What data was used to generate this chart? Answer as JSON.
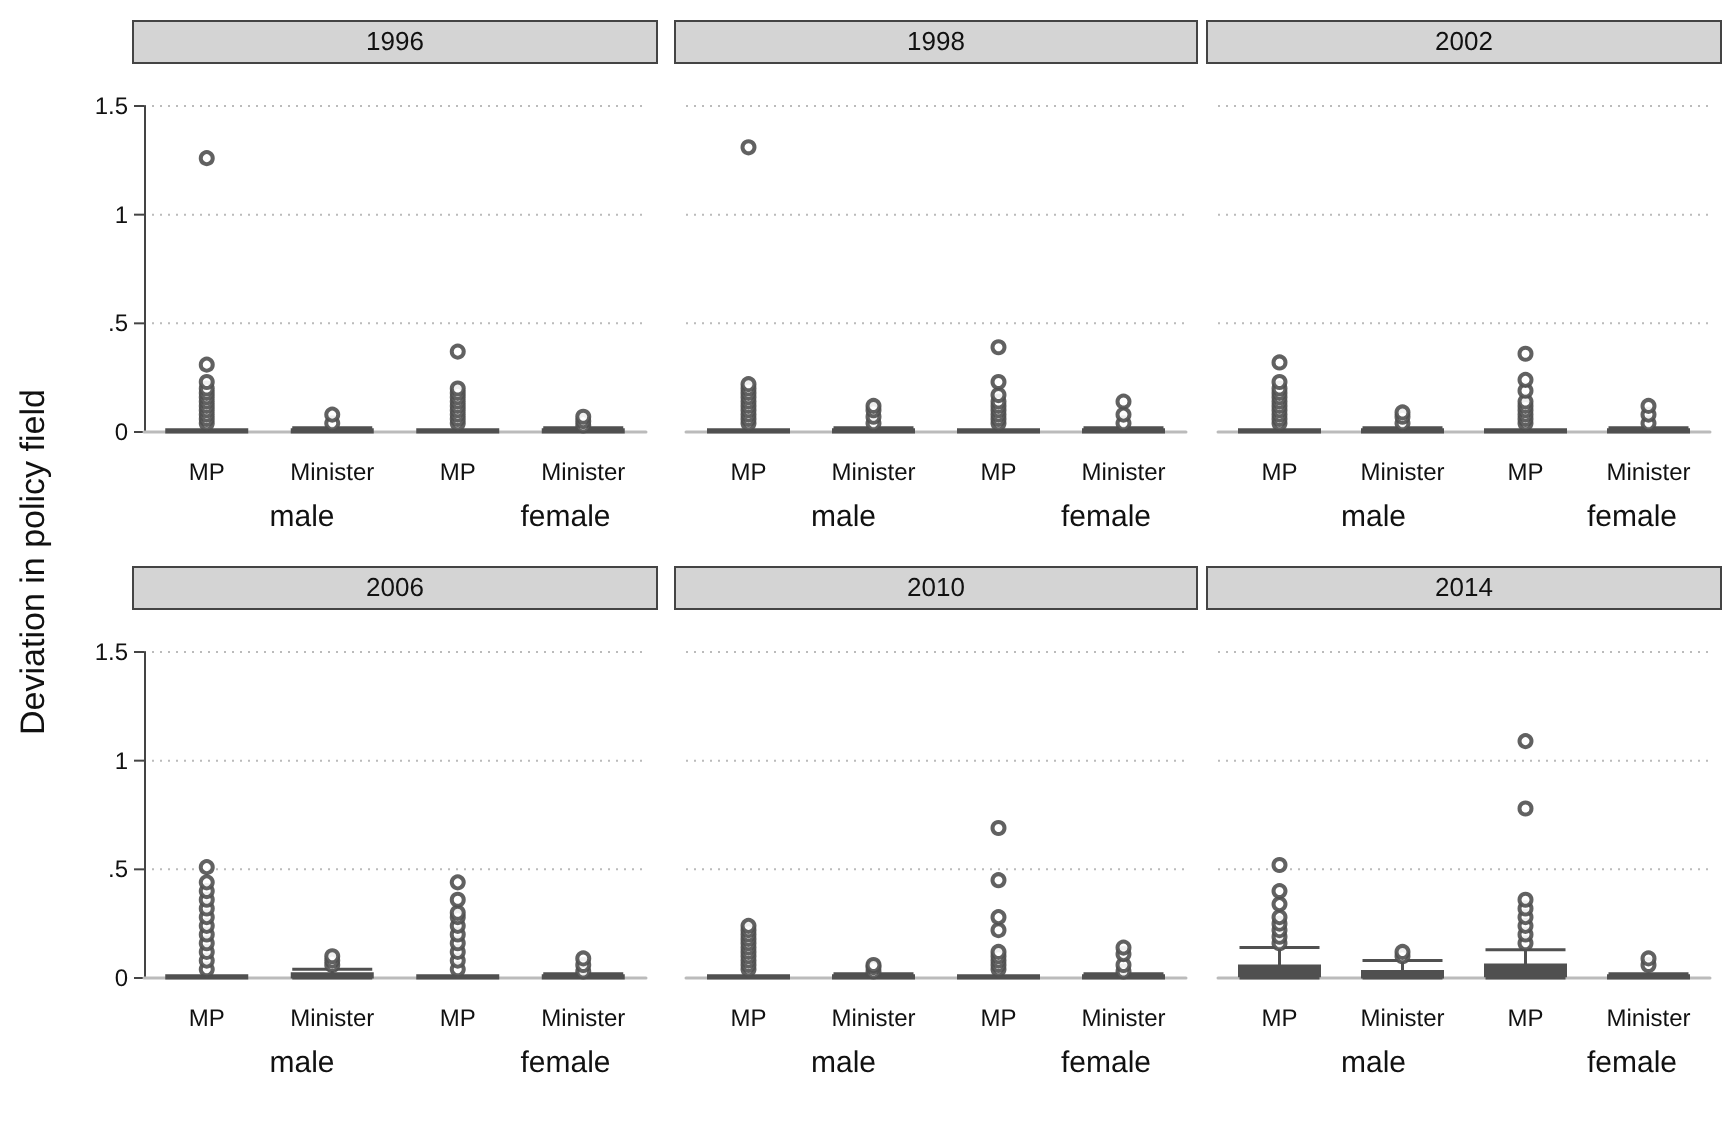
{
  "chart_data": [
    {
      "type": "box",
      "title": "1996",
      "ylabel": "Deviation in policy field",
      "categories": [
        "MP",
        "Minister",
        "MP",
        "Minister"
      ],
      "annotations": [
        "male",
        "female"
      ],
      "ylim": [
        0,
        1.5
      ],
      "yticks": [
        {
          "value": 0,
          "label": "0"
        },
        {
          "value": 0.5,
          "label": ".5"
        },
        {
          "value": 1,
          "label": "1"
        },
        {
          "value": 1.5,
          "label": "1.5"
        }
      ],
      "grid": "y",
      "series": [
        {
          "color": "#505050",
          "boxes": [
            {
              "low": 0,
              "q1": 0,
              "median": 0.003,
              "q3": 0.01,
              "high": 0.01,
              "outliers": [
                0.04,
                0.06,
                0.08,
                0.1,
                0.12,
                0.14,
                0.16,
                0.18,
                0.2,
                0.23,
                0.31,
                1.26
              ]
            },
            {
              "low": 0,
              "q1": 0,
              "median": 0.003,
              "q3": 0.01,
              "high": 0.02,
              "outliers": [
                0.04,
                0.08
              ]
            },
            {
              "low": 0,
              "q1": 0,
              "median": 0.003,
              "q3": 0.01,
              "high": 0.01,
              "outliers": [
                0.04,
                0.06,
                0.08,
                0.1,
                0.12,
                0.14,
                0.16,
                0.18,
                0.2,
                0.37
              ]
            },
            {
              "low": 0,
              "q1": 0,
              "median": 0.003,
              "q3": 0.01,
              "high": 0.02,
              "outliers": [
                0.03,
                0.05,
                0.07
              ]
            }
          ]
        }
      ]
    },
    {
      "type": "box",
      "title": "1998",
      "categories": [
        "MP",
        "Minister",
        "MP",
        "Minister"
      ],
      "annotations": [
        "male",
        "female"
      ],
      "ylim": [
        0,
        1.5
      ],
      "yticks": [
        {
          "value": 0,
          "label": null
        },
        {
          "value": 0.5,
          "label": null
        },
        {
          "value": 1,
          "label": null
        },
        {
          "value": 1.5,
          "label": null
        }
      ],
      "grid": "y",
      "tick_labels": "x",
      "series": [
        {
          "color": "#505050",
          "boxes": [
            {
              "low": 0,
              "q1": 0,
              "median": 0.003,
              "q3": 0.01,
              "high": 0.01,
              "outliers": [
                0.04,
                0.06,
                0.08,
                0.1,
                0.12,
                0.14,
                0.16,
                0.18,
                0.2,
                0.22,
                1.31
              ]
            },
            {
              "low": 0,
              "q1": 0,
              "median": 0.003,
              "q3": 0.01,
              "high": 0.02,
              "outliers": [
                0.04,
                0.07,
                0.1,
                0.12
              ]
            },
            {
              "low": 0,
              "q1": 0,
              "median": 0.003,
              "q3": 0.01,
              "high": 0.01,
              "outliers": [
                0.04,
                0.06,
                0.08,
                0.1,
                0.12,
                0.14,
                0.17,
                0.23,
                0.39
              ]
            },
            {
              "low": 0,
              "q1": 0,
              "median": 0.003,
              "q3": 0.01,
              "high": 0.02,
              "outliers": [
                0.04,
                0.08,
                0.14
              ]
            }
          ]
        }
      ]
    },
    {
      "type": "box",
      "title": "2002",
      "categories": [
        "MP",
        "Minister",
        "MP",
        "Minister"
      ],
      "annotations": [
        "male",
        "female"
      ],
      "ylim": [
        0,
        1.5
      ],
      "yticks": [
        {
          "value": 0,
          "label": null
        },
        {
          "value": 0.5,
          "label": null
        },
        {
          "value": 1,
          "label": null
        },
        {
          "value": 1.5,
          "label": null
        }
      ],
      "grid": "y",
      "tick_labels": "x",
      "series": [
        {
          "color": "#505050",
          "boxes": [
            {
              "low": 0,
              "q1": 0,
              "median": 0.003,
              "q3": 0.01,
              "high": 0.01,
              "outliers": [
                0.04,
                0.06,
                0.08,
                0.1,
                0.12,
                0.14,
                0.16,
                0.18,
                0.2,
                0.23,
                0.32
              ]
            },
            {
              "low": 0,
              "q1": 0,
              "median": 0.003,
              "q3": 0.01,
              "high": 0.02,
              "outliers": [
                0.04,
                0.07,
                0.09
              ]
            },
            {
              "low": 0,
              "q1": 0,
              "median": 0.003,
              "q3": 0.01,
              "high": 0.01,
              "outliers": [
                0.04,
                0.06,
                0.08,
                0.1,
                0.12,
                0.14,
                0.19,
                0.24,
                0.36
              ]
            },
            {
              "low": 0,
              "q1": 0,
              "median": 0.003,
              "q3": 0.01,
              "high": 0.02,
              "outliers": [
                0.04,
                0.08,
                0.12
              ]
            }
          ]
        }
      ]
    },
    {
      "type": "box",
      "title": "2006",
      "categories": [
        "MP",
        "Minister",
        "MP",
        "Minister"
      ],
      "annotations": [
        "male",
        "female"
      ],
      "ylim": [
        0,
        1.5
      ],
      "yticks": [
        {
          "value": 0,
          "label": "0"
        },
        {
          "value": 0.5,
          "label": ".5"
        },
        {
          "value": 1,
          "label": "1"
        },
        {
          "value": 1.5,
          "label": "1.5"
        }
      ],
      "grid": "y",
      "series": [
        {
          "color": "#505050",
          "boxes": [
            {
              "low": 0,
              "q1": 0,
              "median": 0.003,
              "q3": 0.01,
              "high": 0.01,
              "outliers": [
                0.04,
                0.08,
                0.12,
                0.16,
                0.2,
                0.24,
                0.28,
                0.32,
                0.36,
                0.4,
                0.44,
                0.51
              ]
            },
            {
              "low": 0,
              "q1": 0.005,
              "median": 0.01,
              "q3": 0.02,
              "high": 0.04,
              "outliers": [
                0.06,
                0.08,
                0.1
              ]
            },
            {
              "low": 0,
              "q1": 0,
              "median": 0.003,
              "q3": 0.01,
              "high": 0.01,
              "outliers": [
                0.04,
                0.08,
                0.12,
                0.16,
                0.2,
                0.24,
                0.28,
                0.3,
                0.36,
                0.44
              ]
            },
            {
              "low": 0,
              "q1": 0,
              "median": 0.003,
              "q3": 0.01,
              "high": 0.02,
              "outliers": [
                0.03,
                0.06,
                0.09
              ]
            }
          ]
        }
      ]
    },
    {
      "type": "box",
      "title": "2010",
      "categories": [
        "MP",
        "Minister",
        "MP",
        "Minister"
      ],
      "annotations": [
        "male",
        "female"
      ],
      "ylim": [
        0,
        1.5
      ],
      "yticks": [
        {
          "value": 0,
          "label": null
        },
        {
          "value": 0.5,
          "label": null
        },
        {
          "value": 1,
          "label": null
        },
        {
          "value": 1.5,
          "label": null
        }
      ],
      "grid": "y",
      "tick_labels": "x",
      "series": [
        {
          "color": "#505050",
          "boxes": [
            {
              "low": 0,
              "q1": 0,
              "median": 0.003,
              "q3": 0.01,
              "high": 0.01,
              "outliers": [
                0.04,
                0.06,
                0.08,
                0.1,
                0.12,
                0.14,
                0.16,
                0.18,
                0.2,
                0.22,
                0.24
              ]
            },
            {
              "low": 0,
              "q1": 0,
              "median": 0.003,
              "q3": 0.01,
              "high": 0.02,
              "outliers": [
                0.03,
                0.05,
                0.06
              ]
            },
            {
              "low": 0,
              "q1": 0,
              "median": 0.003,
              "q3": 0.01,
              "high": 0.01,
              "outliers": [
                0.04,
                0.06,
                0.08,
                0.1,
                0.12,
                0.22,
                0.28,
                0.45,
                0.69
              ]
            },
            {
              "low": 0,
              "q1": 0,
              "median": 0.003,
              "q3": 0.01,
              "high": 0.02,
              "outliers": [
                0.03,
                0.06,
                0.11,
                0.14
              ]
            }
          ]
        }
      ]
    },
    {
      "type": "box",
      "title": "2014",
      "categories": [
        "MP",
        "Minister",
        "MP",
        "Minister"
      ],
      "annotations": [
        "male",
        "female"
      ],
      "ylim": [
        0,
        1.5
      ],
      "yticks": [
        {
          "value": 0,
          "label": null
        },
        {
          "value": 0.5,
          "label": null
        },
        {
          "value": 1,
          "label": null
        },
        {
          "value": 1.5,
          "label": null
        }
      ],
      "grid": "y",
      "tick_labels": "x",
      "series": [
        {
          "color": "#505050",
          "boxes": [
            {
              "low": 0,
              "q1": 0.01,
              "median": 0.03,
              "q3": 0.055,
              "high": 0.14,
              "outliers": [
                0.16,
                0.19,
                0.22,
                0.25,
                0.28,
                0.34,
                0.4,
                0.52
              ]
            },
            {
              "low": 0,
              "q1": 0.005,
              "median": 0.015,
              "q3": 0.03,
              "high": 0.08,
              "outliers": [
                0.1,
                0.12
              ]
            },
            {
              "low": 0,
              "q1": 0.01,
              "median": 0.03,
              "q3": 0.06,
              "high": 0.13,
              "outliers": [
                0.16,
                0.2,
                0.24,
                0.28,
                0.32,
                0.36,
                0.78,
                1.09
              ]
            },
            {
              "low": 0,
              "q1": 0,
              "median": 0.003,
              "q3": 0.01,
              "high": 0.02,
              "outliers": [
                0.06,
                0.09
              ]
            }
          ]
        }
      ]
    }
  ]
}
